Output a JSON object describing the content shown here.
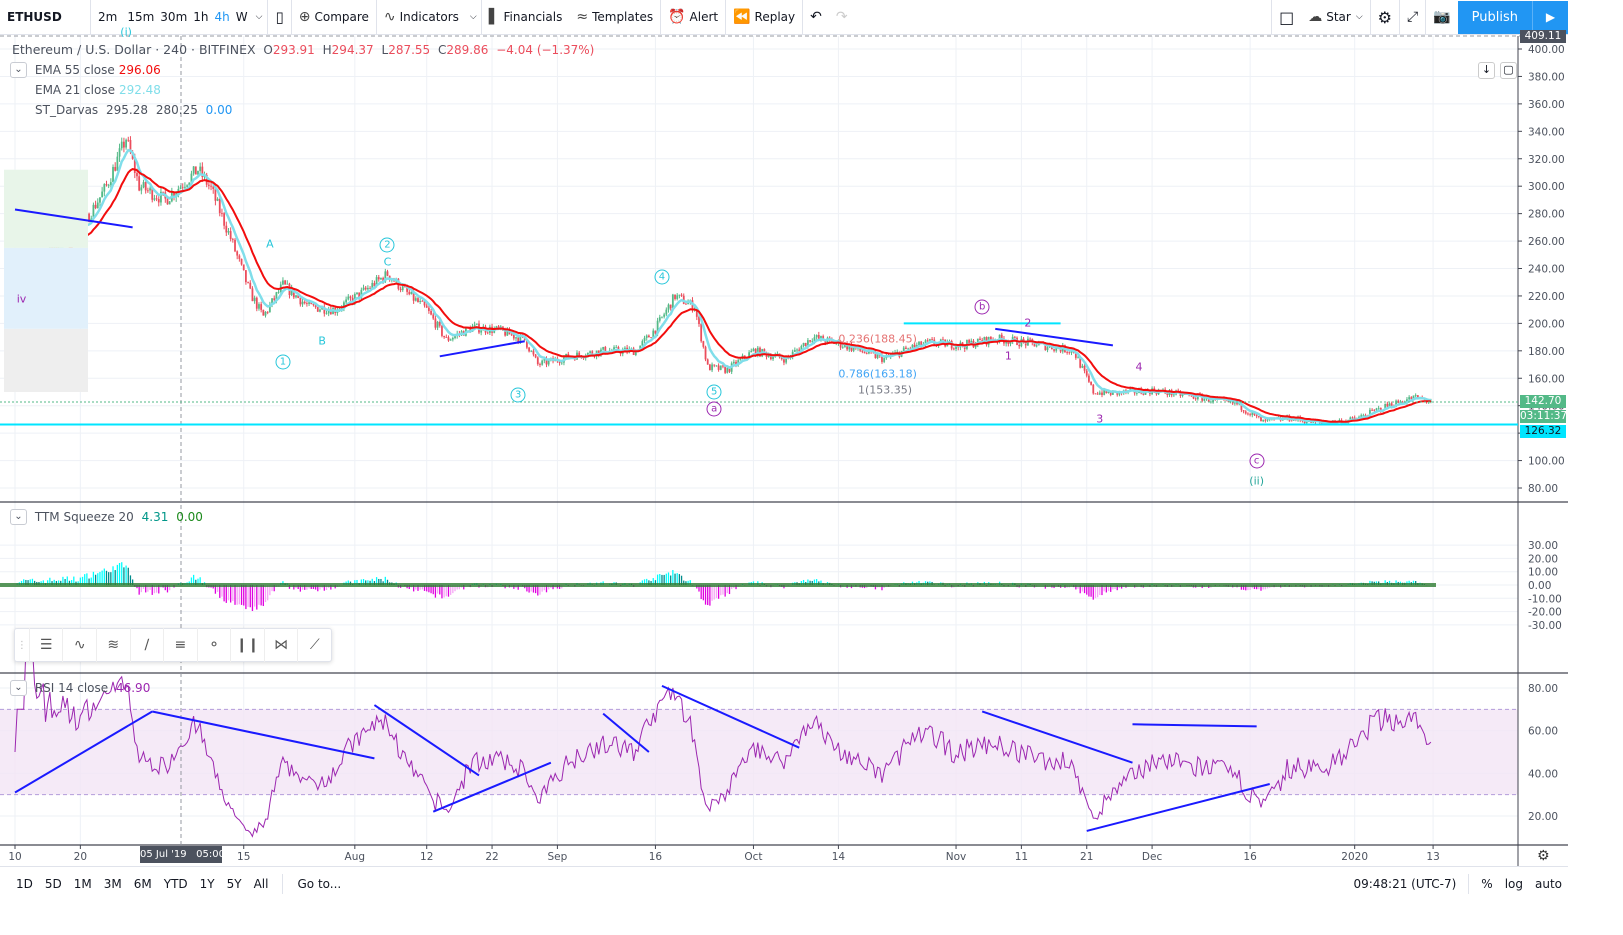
{
  "toolbar": {
    "symbol": "ETHUSD",
    "intervals": [
      "2m",
      "15m",
      "30m",
      "1h",
      "4h",
      "W"
    ],
    "active_interval": "4h",
    "compare": "Compare",
    "indicators": "Indicators",
    "financials": "Financials",
    "templates": "Templates",
    "alert": "Alert",
    "replay": "Replay",
    "star": "Star",
    "publish": "Publish"
  },
  "legend": {
    "title": "Ethereum / U.S. Dollar · 240 · BITFINEX",
    "o_label": "O",
    "open": "293.91",
    "h_label": "H",
    "high": "294.37",
    "l_label": "L",
    "low": "287.55",
    "c_label": "C",
    "close": "289.86",
    "change": "−4.04 (−1.37%)",
    "ema55_label": "EMA 55 close",
    "ema55": "296.06",
    "ema21_label": "EMA 21 close",
    "ema21": "292.48",
    "darvas_label": "ST_Darvas",
    "darvas": [
      "295.28",
      "280.25",
      "0.00"
    ],
    "ttm_label": "TTM Squeeze 20",
    "ttm": [
      "4.31",
      "0.00"
    ],
    "rsi_label": "RSI 14 close",
    "rsi": "46.90"
  },
  "price_axis": {
    "ticks": [
      80,
      100,
      120,
      140,
      160,
      180,
      200,
      220,
      240,
      260,
      280,
      300,
      320,
      340,
      360,
      380,
      400
    ],
    "top_badge": "409.11",
    "last_price": "142.70",
    "countdown": "03:11:37",
    "line_price": "126.32"
  },
  "ttm_axis": {
    "ticks": [
      "30.00",
      "20.00",
      "10.00",
      "0.00",
      "-10.00",
      "-20.00",
      "-30.00"
    ]
  },
  "rsi_axis": {
    "ticks": [
      "80.00",
      "60.00",
      "40.00",
      "20.00"
    ]
  },
  "time_axis": {
    "ticks": [
      [
        "2019-06-10",
        "10"
      ],
      [
        "2019-06-20",
        "20"
      ],
      [
        "2019-07-15",
        "15"
      ],
      [
        "2019-08-01",
        "Aug"
      ],
      [
        "2019-08-12",
        "12"
      ],
      [
        "2019-08-22",
        "22"
      ],
      [
        "2019-09-01",
        "Sep"
      ],
      [
        "2019-09-16",
        "16"
      ],
      [
        "2019-10-01",
        "Oct"
      ],
      [
        "2019-10-14",
        "14"
      ],
      [
        "2019-11-01",
        "Nov"
      ],
      [
        "2019-11-11",
        "11"
      ],
      [
        "2019-11-21",
        "21"
      ],
      [
        "2019-12-01",
        "Dec"
      ],
      [
        "2019-12-16",
        "16"
      ],
      [
        "2020-01-01",
        "2020"
      ],
      [
        "2020-01-13",
        "13"
      ]
    ],
    "crosshair_label": "05 Jul '19   05:00"
  },
  "colors": {
    "up": "#53b987",
    "down": "#eb4d5c",
    "ema55": "#f20d0d",
    "ema21": "#80deea",
    "cyan": "#00e5ff",
    "accent": "#2196f3",
    "rsi": "#9c27b0",
    "trend": "#1a1aff"
  },
  "chart_data": {
    "type": "candlestick",
    "timeframe": "4h",
    "ylim": [
      75,
      410
    ],
    "close_path": [
      [
        "2019-06-10",
        240
      ],
      [
        "2019-06-15",
        252
      ],
      [
        "2019-06-20",
        268
      ],
      [
        "2019-06-24",
        300
      ],
      [
        "2019-06-27",
        335
      ],
      [
        "2019-06-29",
        300
      ],
      [
        "2019-07-03",
        290
      ],
      [
        "2019-07-08",
        312
      ],
      [
        "2019-07-10",
        298
      ],
      [
        "2019-07-13",
        262
      ],
      [
        "2019-07-16",
        222
      ],
      [
        "2019-07-18",
        205
      ],
      [
        "2019-07-21",
        228
      ],
      [
        "2019-07-25",
        212
      ],
      [
        "2019-07-29",
        210
      ],
      [
        "2019-08-02",
        222
      ],
      [
        "2019-08-06",
        236
      ],
      [
        "2019-08-09",
        222
      ],
      [
        "2019-08-12",
        210
      ],
      [
        "2019-08-15",
        188
      ],
      [
        "2019-08-19",
        197
      ],
      [
        "2019-08-23",
        195
      ],
      [
        "2019-08-27",
        188
      ],
      [
        "2019-08-29",
        170
      ],
      [
        "2019-09-03",
        176
      ],
      [
        "2019-09-08",
        180
      ],
      [
        "2019-09-13",
        180
      ],
      [
        "2019-09-16",
        196
      ],
      [
        "2019-09-19",
        220
      ],
      [
        "2019-09-22",
        212
      ],
      [
        "2019-09-24",
        168
      ],
      [
        "2019-09-27",
        166
      ],
      [
        "2019-10-01",
        180
      ],
      [
        "2019-10-06",
        174
      ],
      [
        "2019-10-10",
        190
      ],
      [
        "2019-10-15",
        184
      ],
      [
        "2019-10-21",
        174
      ],
      [
        "2019-10-25",
        182
      ],
      [
        "2019-10-28",
        186
      ],
      [
        "2019-11-02",
        184
      ],
      [
        "2019-11-07",
        189
      ],
      [
        "2019-11-13",
        185
      ],
      [
        "2019-11-19",
        180
      ],
      [
        "2019-11-22",
        150
      ],
      [
        "2019-11-25",
        149
      ],
      [
        "2019-12-01",
        151
      ],
      [
        "2019-12-07",
        147
      ],
      [
        "2019-12-14",
        141
      ],
      [
        "2019-12-18",
        128
      ],
      [
        "2019-12-22",
        131
      ],
      [
        "2019-12-27",
        127
      ],
      [
        "2020-01-01",
        130
      ],
      [
        "2020-01-06",
        140
      ],
      [
        "2020-01-10",
        146
      ],
      [
        "2020-01-13",
        143
      ]
    ],
    "horizontal_lines": [
      {
        "price": 126.32,
        "color": "#00e5ff"
      },
      {
        "price": 142.7,
        "style": "dotted"
      }
    ],
    "fib_labels": [
      {
        "text": "0.236(188.45)",
        "date": "2019-10-14",
        "price": 188.45,
        "color": "#e57373"
      },
      {
        "text": "0.786(163.18)",
        "date": "2019-10-14",
        "price": 163.18,
        "color": "#42a5f5"
      },
      {
        "text": "1(153.35)",
        "date": "2019-10-17",
        "price": 153.35,
        "color": "#787b86"
      }
    ],
    "wave_labels": [
      {
        "text": "(i)",
        "date": "2019-06-27",
        "price": 397,
        "color": "#26c6da"
      },
      {
        "text": "iv",
        "date": "2019-06-11",
        "price": 218,
        "color": "#9c27b0"
      },
      {
        "text": "1",
        "date": "2019-07-21",
        "price": 172,
        "color": "#26c6da",
        "circled": true
      },
      {
        "text": "2",
        "date": "2019-08-06",
        "price": 257,
        "color": "#26c6da",
        "circled": true
      },
      {
        "text": "3",
        "date": "2019-08-26",
        "price": 148,
        "color": "#26c6da",
        "circled": true
      },
      {
        "text": "4",
        "date": "2019-09-17",
        "price": 234,
        "color": "#26c6da",
        "circled": true
      },
      {
        "text": "5",
        "date": "2019-09-25",
        "price": 150,
        "color": "#26c6da",
        "circled": true
      },
      {
        "text": "a",
        "date": "2019-09-25",
        "price": 140,
        "color": "#9c27b0",
        "circled": true
      },
      {
        "text": "b",
        "date": "2019-11-05",
        "price": 212,
        "color": "#9c27b0",
        "circled": true
      },
      {
        "text": "c",
        "date": "2019-12-17",
        "price": 100,
        "color": "#9c27b0",
        "circled": true
      },
      {
        "text": "(ii)",
        "date": "2019-12-17",
        "price": 85,
        "color": "#26a69a"
      },
      {
        "text": "A",
        "date": "2019-07-19",
        "price": 258,
        "color": "#26c6da"
      },
      {
        "text": "B",
        "date": "2019-07-27",
        "price": 187,
        "color": "#26c6da"
      },
      {
        "text": "C",
        "date": "2019-08-06",
        "price": 247,
        "color": "#26c6da"
      },
      {
        "text": "2",
        "date": "2019-11-12",
        "price": 200,
        "color": "#9c27b0"
      },
      {
        "text": "4",
        "date": "2019-11-29",
        "price": 168,
        "color": "#9c27b0"
      },
      {
        "text": "3",
        "date": "2019-11-23",
        "price": 130,
        "color": "#9c27b0"
      },
      {
        "text": "1",
        "date": "2019-11-09",
        "price": 176,
        "color": "#9c27b0"
      }
    ],
    "price_trendlines": [
      [
        [
          "2019-06-10",
          283
        ],
        [
          "2019-06-28",
          270
        ]
      ],
      [
        [
          "2019-08-14",
          176
        ],
        [
          "2019-08-27",
          187
        ]
      ],
      [
        [
          "2019-11-07",
          196
        ],
        [
          "2019-11-25",
          184
        ]
      ],
      [
        [
          "2019-10-24",
          200
        ],
        [
          "2019-11-17",
          200
        ]
      ]
    ],
    "rsi_trendlines": [
      [
        [
          "2019-06-10",
          31
        ],
        [
          "2019-07-01",
          69
        ]
      ],
      [
        [
          "2019-07-01",
          69
        ],
        [
          "2019-08-04",
          47
        ]
      ],
      [
        [
          "2019-08-04",
          72
        ],
        [
          "2019-08-20",
          39
        ]
      ],
      [
        [
          "2019-08-13",
          22
        ],
        [
          "2019-08-31",
          45
        ]
      ],
      [
        [
          "2019-09-08",
          68
        ],
        [
          "2019-09-15",
          50
        ]
      ],
      [
        [
          "2019-09-17",
          81
        ],
        [
          "2019-10-08",
          52
        ]
      ],
      [
        [
          "2019-11-05",
          69
        ],
        [
          "2019-11-28",
          45
        ]
      ],
      [
        [
          "2019-11-21",
          13
        ],
        [
          "2019-12-19",
          35
        ]
      ],
      [
        [
          "2019-11-28",
          63
        ],
        [
          "2019-12-17",
          62
        ]
      ]
    ]
  },
  "drawing_toolbar": [
    "lines-icon",
    "abc-pattern-icon",
    "elliott-wave-icon",
    "parallel-channel-icon",
    "fib-retracement-icon",
    "horizontal-ray-icon",
    "gann-icon",
    "xabcd-pattern-icon",
    "trend-line-icon"
  ],
  "bottom": {
    "ranges": [
      "1D",
      "5D",
      "1M",
      "3M",
      "6M",
      "YTD",
      "1Y",
      "5Y",
      "All"
    ],
    "goto": "Go to...",
    "time": "09:48:21 (UTC-7)",
    "percent": "%",
    "log": "log",
    "auto": "auto"
  }
}
